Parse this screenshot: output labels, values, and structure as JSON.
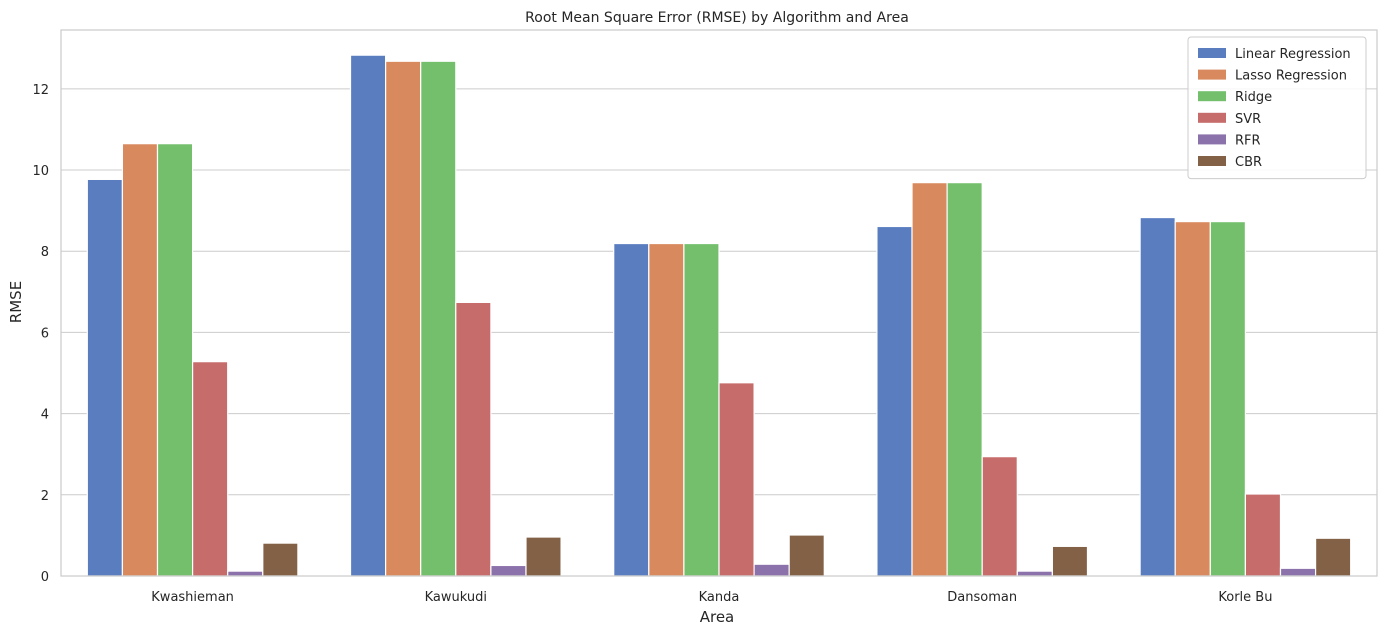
{
  "chart_data": {
    "type": "bar",
    "title": "Root Mean Square Error (RMSE) by Algorithm and Area",
    "xlabel": "Area",
    "ylabel": "RMSE",
    "categories": [
      "Kwashieman",
      "Kawukudi",
      "Kanda",
      "Dansoman",
      "Korle Bu"
    ],
    "ylim": [
      0,
      13.45
    ],
    "yticks": [
      0,
      2,
      4,
      6,
      8,
      10,
      12
    ],
    "grid": true,
    "legend_position": "top-right",
    "series": [
      {
        "name": "Linear Regression",
        "color": "#5a7dc0",
        "values": [
          9.77,
          12.83,
          8.19,
          8.61,
          8.83
        ]
      },
      {
        "name": "Lasso Regression",
        "color": "#d8895d",
        "values": [
          10.65,
          12.68,
          8.19,
          9.69,
          8.73
        ]
      },
      {
        "name": "Ridge",
        "color": "#73bf6c",
        "values": [
          10.65,
          12.68,
          8.19,
          9.69,
          8.73
        ]
      },
      {
        "name": "SVR",
        "color": "#c66c6b",
        "values": [
          5.28,
          6.74,
          4.76,
          2.94,
          2.02
        ]
      },
      {
        "name": "RFR",
        "color": "#8c72aa",
        "values": [
          0.12,
          0.26,
          0.29,
          0.12,
          0.19
        ]
      },
      {
        "name": "CBR",
        "color": "#836146",
        "values": [
          0.81,
          0.96,
          1.01,
          0.73,
          0.93
        ]
      }
    ]
  }
}
